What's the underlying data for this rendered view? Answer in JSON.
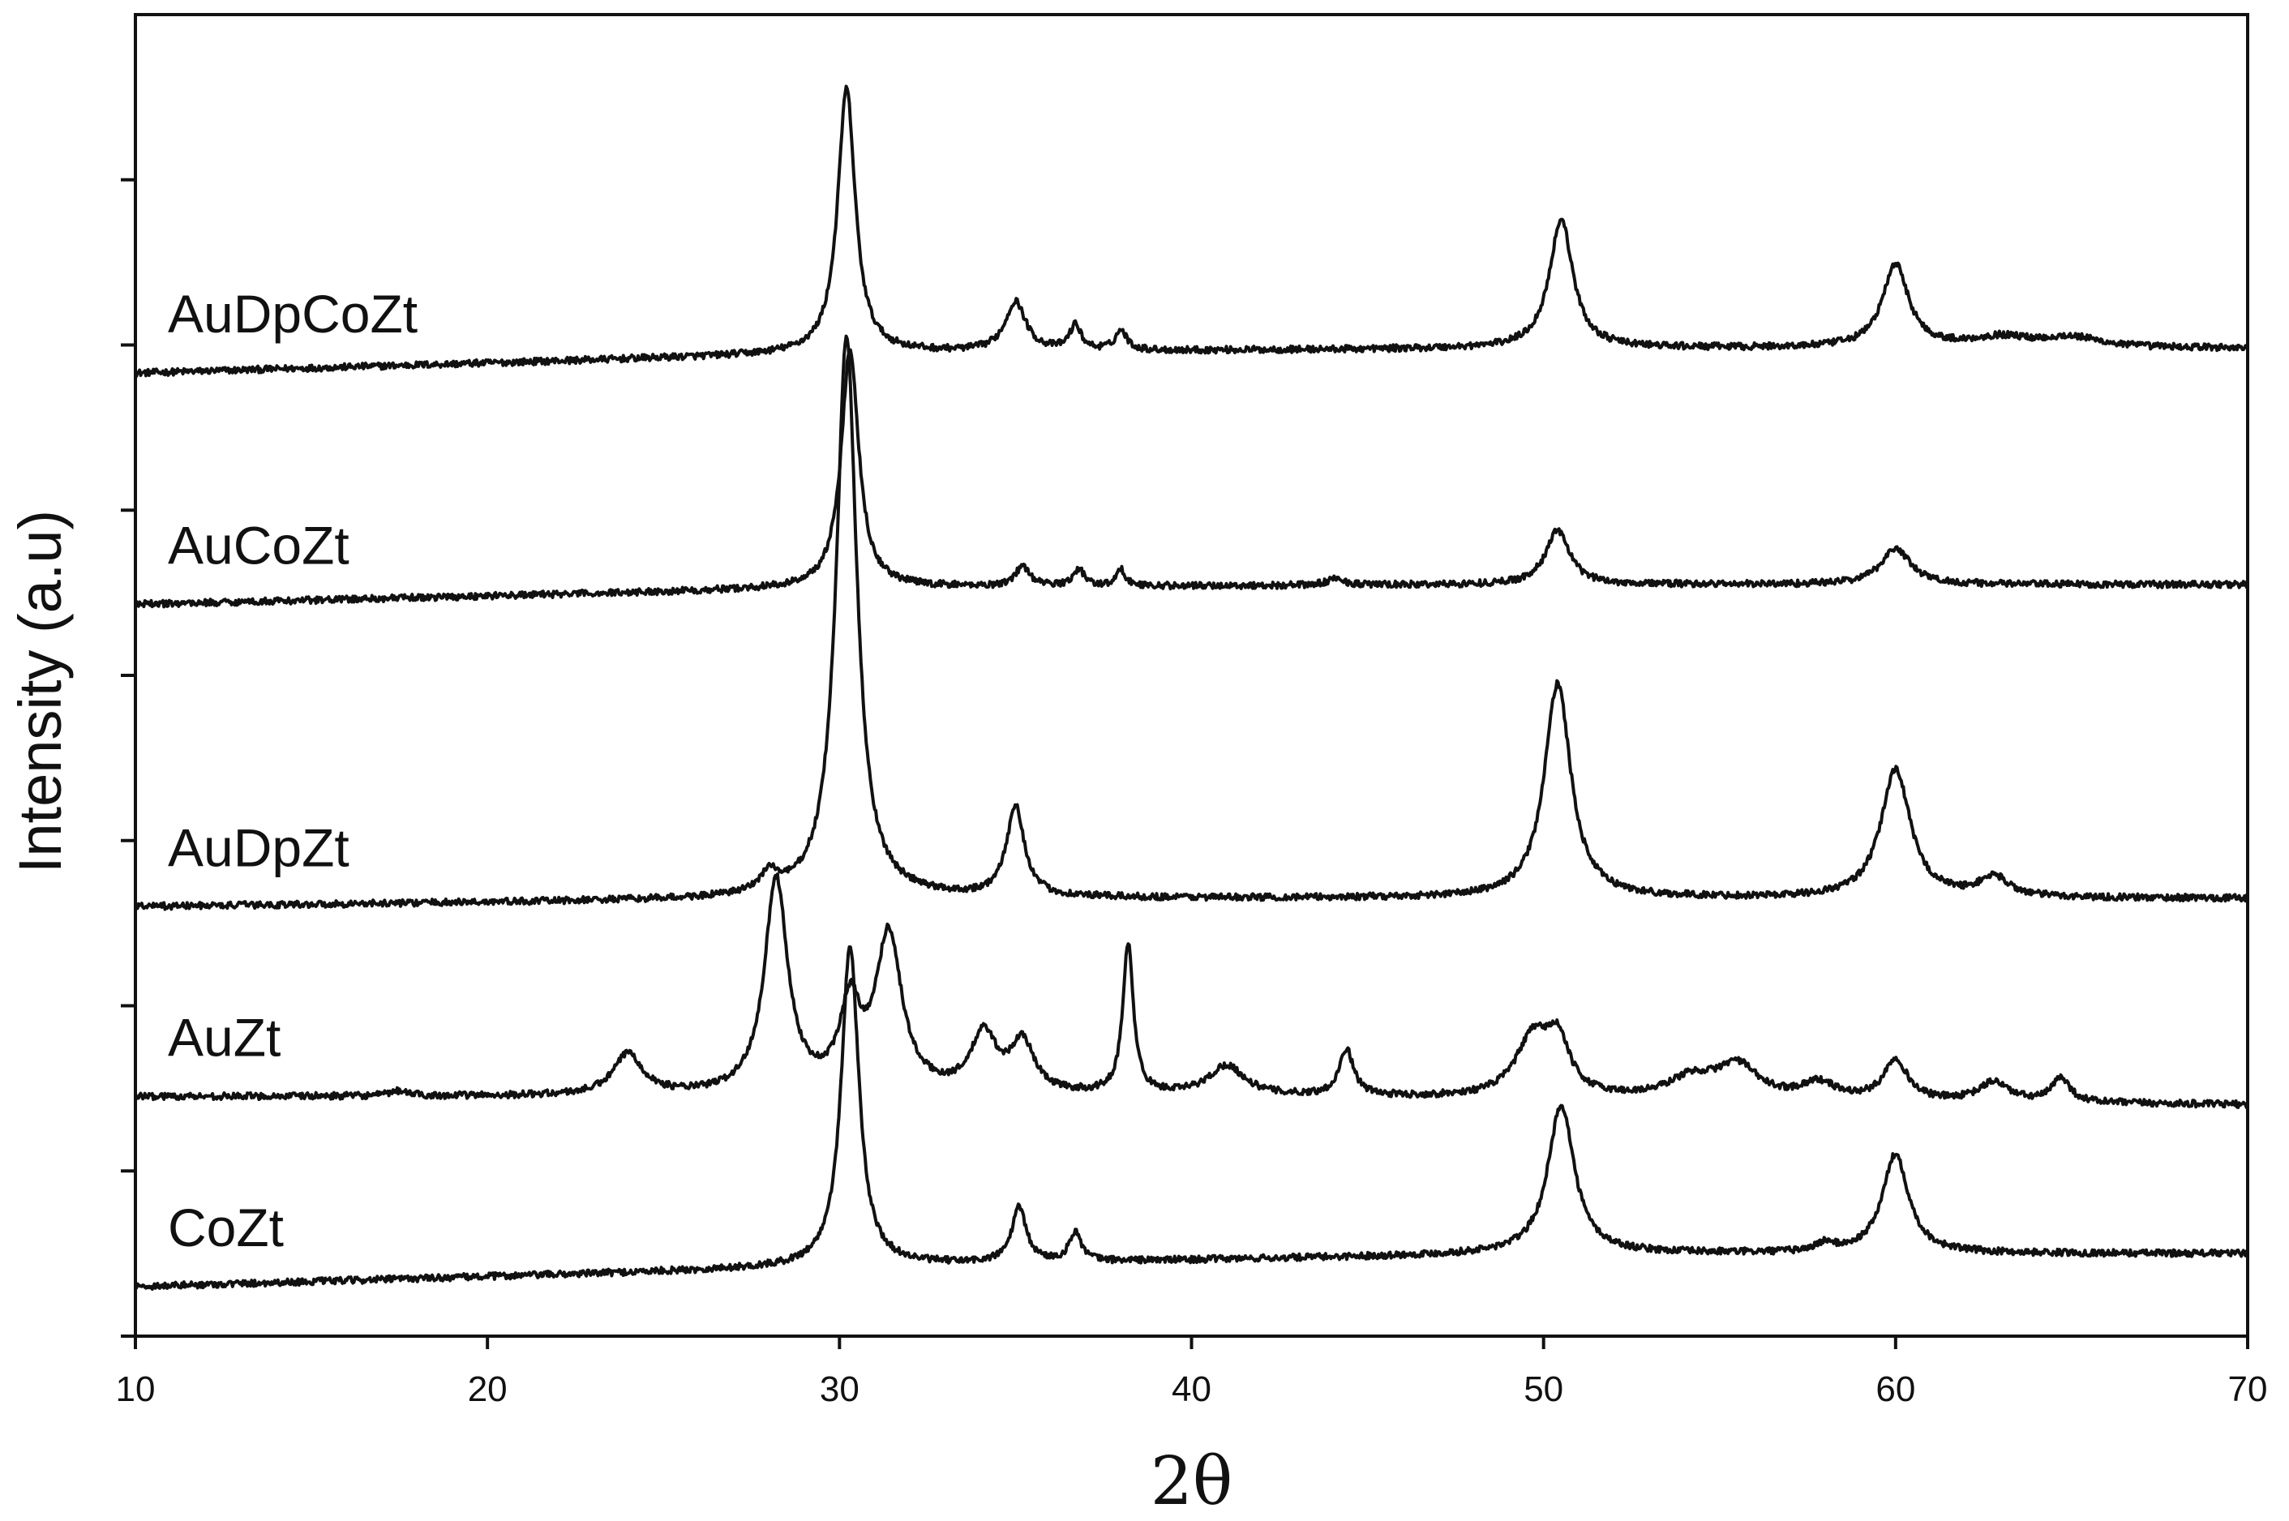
{
  "chart_data": {
    "type": "line",
    "title": "",
    "xlabel": "2θ",
    "ylabel": "Intensity (a.u)",
    "xlim": [
      10,
      70
    ],
    "ylim": [
      0,
      8
    ],
    "x_ticks": [
      10,
      20,
      30,
      40,
      50,
      60,
      70
    ],
    "y_tick_count": 8,
    "y_tick_labels_shown": false,
    "grid": false,
    "legend": "none (series labelled directly on plot)",
    "noise_amplitude": 0.02,
    "series": [
      {
        "name": "AuDpCoZt",
        "baseline": [
          [
            10,
            5.83
          ],
          [
            30,
            5.95
          ],
          [
            50,
            5.98
          ],
          [
            70,
            5.98
          ]
        ],
        "peaks": [
          {
            "x": 30.2,
            "h": 1.6,
            "w": 0.3
          },
          {
            "x": 35.0,
            "h": 0.3,
            "w": 0.35
          },
          {
            "x": 36.7,
            "h": 0.15,
            "w": 0.2
          },
          {
            "x": 38.0,
            "h": 0.12,
            "w": 0.2
          },
          {
            "x": 50.5,
            "h": 0.78,
            "w": 0.4
          },
          {
            "x": 60.0,
            "h": 0.5,
            "w": 0.45
          },
          {
            "x": 63.0,
            "h": 0.06,
            "w": 1.0
          },
          {
            "x": 65.0,
            "h": 0.06,
            "w": 1.0
          }
        ]
      },
      {
        "name": "AuCoZt",
        "baseline": [
          [
            10,
            4.43
          ],
          [
            30,
            4.53
          ],
          [
            50,
            4.55
          ],
          [
            70,
            4.55
          ]
        ],
        "peaks": [
          {
            "x": 30.3,
            "h": 1.45,
            "w": 0.3
          },
          {
            "x": 35.2,
            "h": 0.12,
            "w": 0.25
          },
          {
            "x": 36.8,
            "h": 0.1,
            "w": 0.2
          },
          {
            "x": 38.0,
            "h": 0.1,
            "w": 0.15
          },
          {
            "x": 44.1,
            "h": 0.04,
            "w": 0.3
          },
          {
            "x": 50.4,
            "h": 0.33,
            "w": 0.4
          },
          {
            "x": 60.0,
            "h": 0.22,
            "w": 0.5
          }
        ]
      },
      {
        "name": "AuDpZt",
        "baseline": [
          [
            10,
            2.6
          ],
          [
            30,
            2.65
          ],
          [
            50,
            2.65
          ],
          [
            70,
            2.65
          ]
        ],
        "peaks": [
          {
            "x": 28.0,
            "h": 0.12,
            "w": 0.3
          },
          {
            "x": 30.2,
            "h": 3.4,
            "w": 0.35
          },
          {
            "x": 35.0,
            "h": 0.55,
            "w": 0.3
          },
          {
            "x": 50.4,
            "h": 1.3,
            "w": 0.45
          },
          {
            "x": 60.0,
            "h": 0.78,
            "w": 0.5
          },
          {
            "x": 62.8,
            "h": 0.12,
            "w": 0.5
          }
        ]
      },
      {
        "name": "AuZt",
        "baseline": [
          [
            10,
            1.45
          ],
          [
            40,
            1.45
          ],
          [
            70,
            1.4
          ]
        ],
        "peaks": [
          {
            "x": 17.5,
            "h": 0.03,
            "w": 0.3
          },
          {
            "x": 24.0,
            "h": 0.25,
            "w": 0.5
          },
          {
            "x": 28.2,
            "h": 1.3,
            "w": 0.4
          },
          {
            "x": 30.3,
            "h": 0.5,
            "w": 0.35
          },
          {
            "x": 31.4,
            "h": 0.95,
            "w": 0.45
          },
          {
            "x": 34.1,
            "h": 0.35,
            "w": 0.45
          },
          {
            "x": 35.2,
            "h": 0.3,
            "w": 0.4
          },
          {
            "x": 38.2,
            "h": 0.9,
            "w": 0.18
          },
          {
            "x": 41.0,
            "h": 0.18,
            "w": 0.6
          },
          {
            "x": 44.4,
            "h": 0.28,
            "w": 0.25
          },
          {
            "x": 49.7,
            "h": 0.35,
            "w": 0.6
          },
          {
            "x": 50.4,
            "h": 0.3,
            "w": 0.4
          },
          {
            "x": 54.2,
            "h": 0.12,
            "w": 0.8
          },
          {
            "x": 55.5,
            "h": 0.2,
            "w": 0.7
          },
          {
            "x": 57.8,
            "h": 0.1,
            "w": 0.6
          },
          {
            "x": 60.0,
            "h": 0.25,
            "w": 0.4
          },
          {
            "x": 62.8,
            "h": 0.12,
            "w": 0.5
          },
          {
            "x": 64.7,
            "h": 0.15,
            "w": 0.3
          }
        ]
      },
      {
        "name": "CoZt",
        "baseline": [
          [
            10,
            0.3
          ],
          [
            30,
            0.42
          ],
          [
            50,
            0.5
          ],
          [
            70,
            0.5
          ]
        ],
        "peaks": [
          {
            "x": 30.3,
            "h": 1.95,
            "w": 0.3
          },
          {
            "x": 35.1,
            "h": 0.33,
            "w": 0.25
          },
          {
            "x": 36.7,
            "h": 0.18,
            "w": 0.2
          },
          {
            "x": 50.5,
            "h": 0.9,
            "w": 0.45
          },
          {
            "x": 58.0,
            "h": 0.05,
            "w": 0.3
          },
          {
            "x": 60.0,
            "h": 0.6,
            "w": 0.45
          }
        ]
      }
    ]
  },
  "colors": {
    "line": "#111111",
    "axis": "#111111",
    "background": "#ffffff"
  }
}
